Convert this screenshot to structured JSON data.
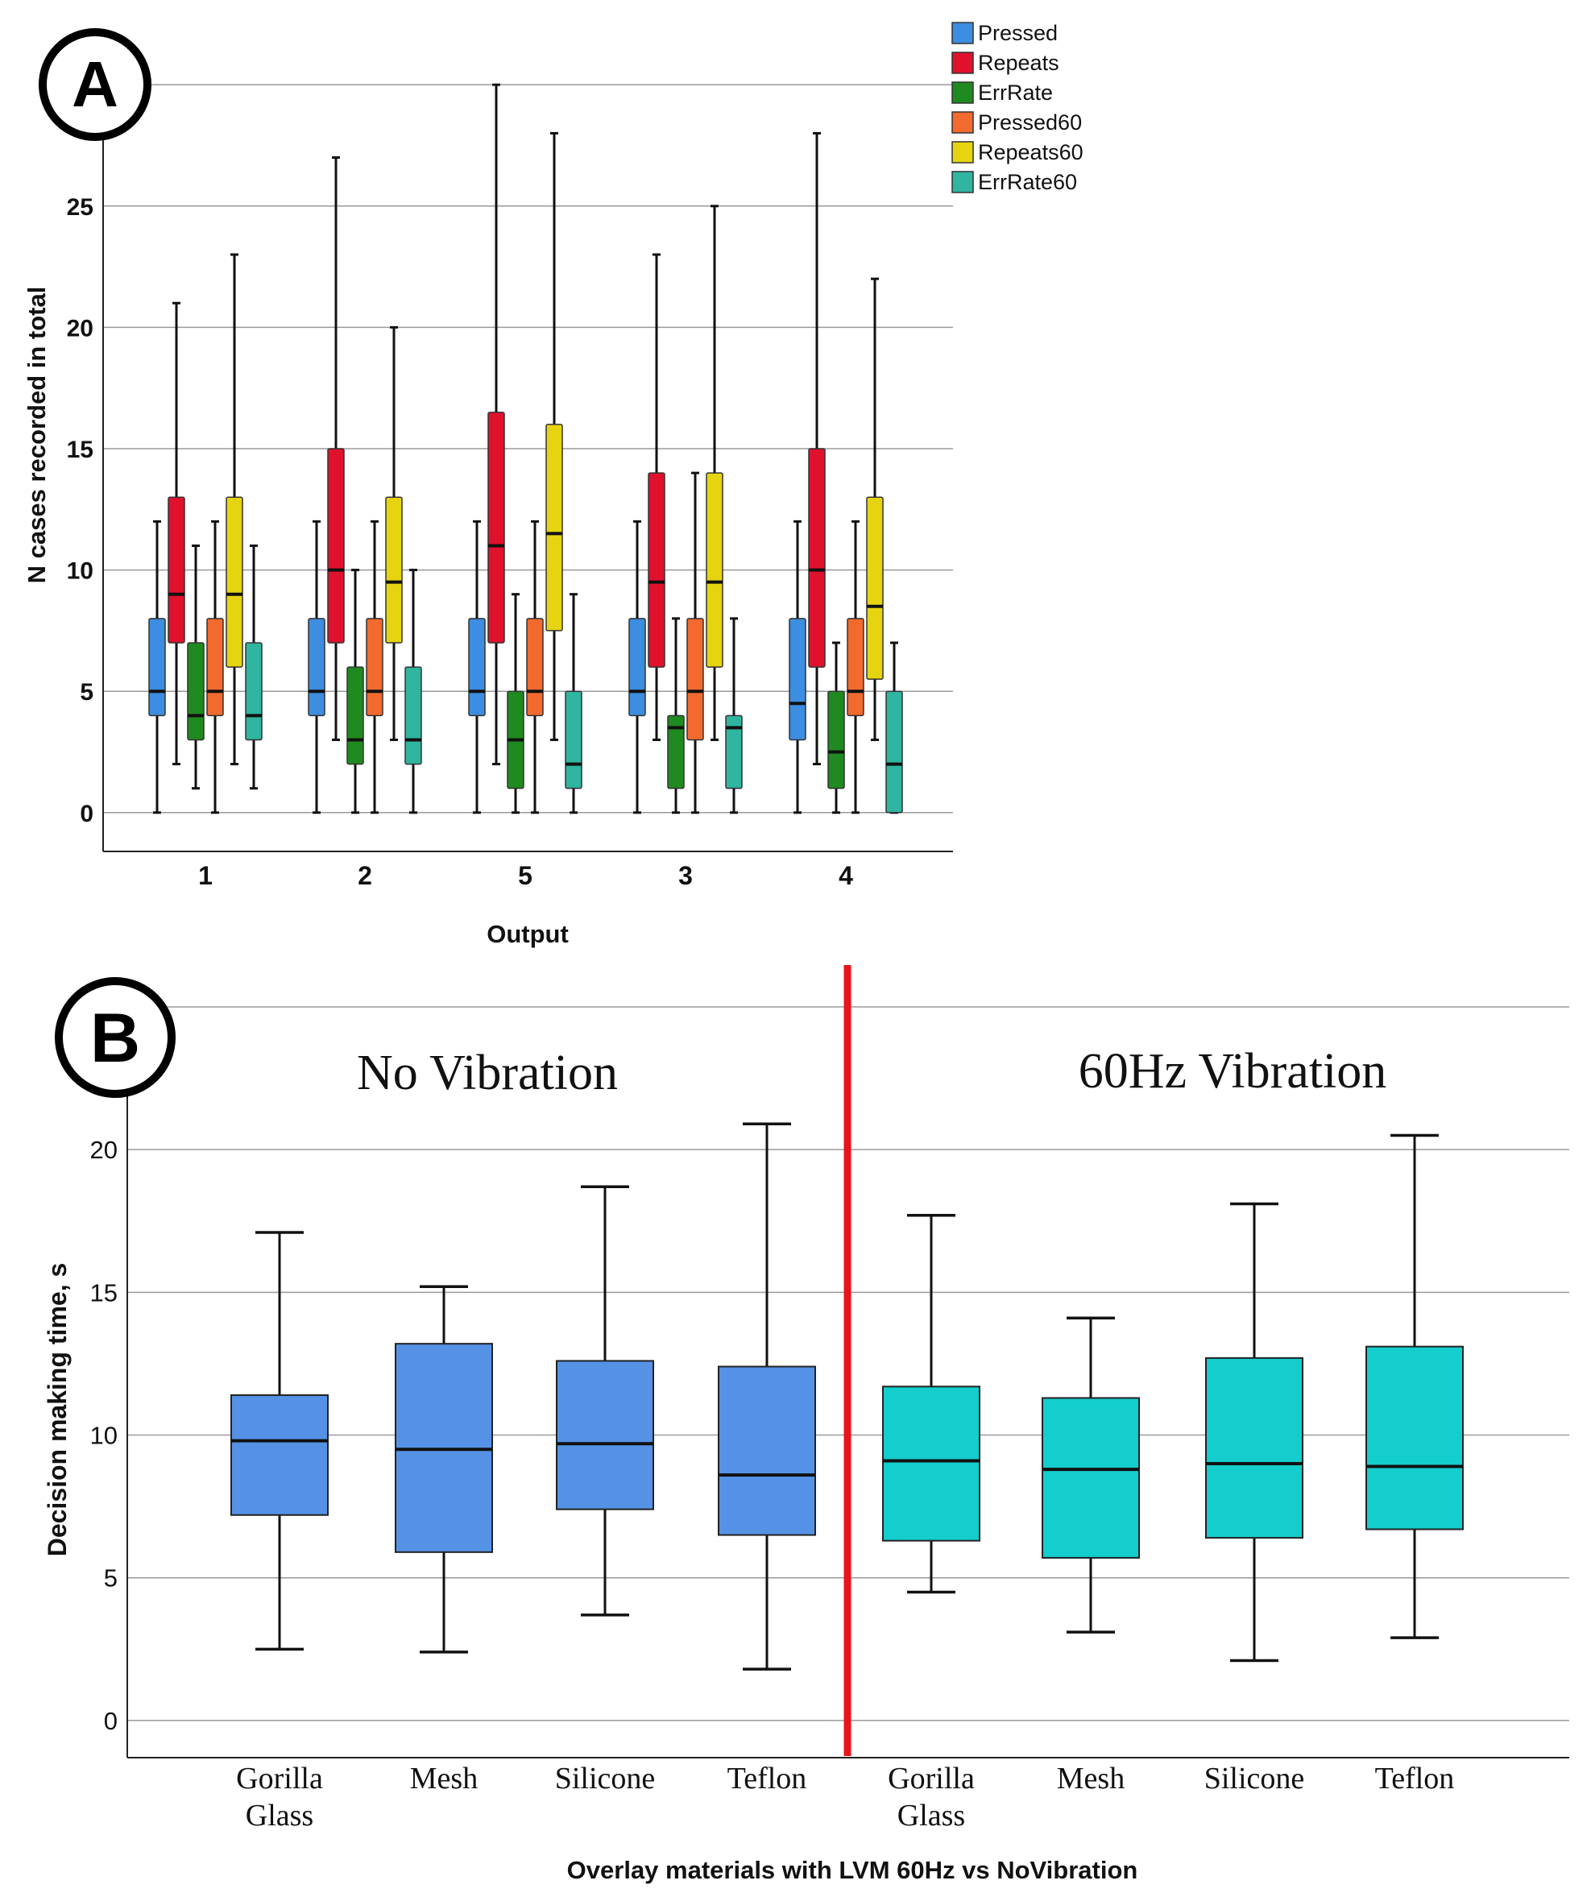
{
  "colors": {
    "pressed": "#3d8de0",
    "repeats": "#e0112d",
    "errrate": "#1f8a1f",
    "pressed60": "#f26a2e",
    "repeats60": "#e6d411",
    "errrate60": "#2fb5a0",
    "no_vibration_box": "#5592e6",
    "vibration_box": "#14cdcd",
    "divider": "#e8141c",
    "grid": "#9a9a9a"
  },
  "chart_data": [
    {
      "id": "A",
      "panel_label": "A",
      "type": "box",
      "title": "",
      "xlabel": "Output",
      "ylabel": "N cases recorded in total",
      "ylim": [
        -1.6,
        31.5
      ],
      "yticks": [
        0,
        5,
        10,
        15,
        20,
        25
      ],
      "grid": true,
      "legend": "top-right",
      "categories": [
        "1",
        "2",
        "5",
        "3",
        "4"
      ],
      "series": [
        {
          "name": "Pressed",
          "color_key": "pressed",
          "stats": [
            {
              "min": 0,
              "q1": 4,
              "median": 5,
              "q3": 8,
              "max": 12
            },
            {
              "min": 0,
              "q1": 4,
              "median": 5,
              "q3": 8,
              "max": 12
            },
            {
              "min": 0,
              "q1": 4,
              "median": 5,
              "q3": 8,
              "max": 12
            },
            {
              "min": 0,
              "q1": 4,
              "median": 5,
              "q3": 8,
              "max": 12
            },
            {
              "min": 0,
              "q1": 3,
              "median": 4.5,
              "q3": 8,
              "max": 12
            }
          ]
        },
        {
          "name": "Repeats",
          "color_key": "repeats",
          "stats": [
            {
              "min": 2,
              "q1": 7,
              "median": 9,
              "q3": 13,
              "max": 21
            },
            {
              "min": 3,
              "q1": 7,
              "median": 10,
              "q3": 15,
              "max": 27
            },
            {
              "min": 2,
              "q1": 7,
              "median": 11,
              "q3": 16.5,
              "max": 30
            },
            {
              "min": 3,
              "q1": 6,
              "median": 9.5,
              "q3": 14,
              "max": 23
            },
            {
              "min": 2,
              "q1": 6,
              "median": 10,
              "q3": 15,
              "max": 28
            }
          ]
        },
        {
          "name": "ErrRate",
          "color_key": "errrate",
          "stats": [
            {
              "min": 1,
              "q1": 3,
              "median": 4,
              "q3": 7,
              "max": 11
            },
            {
              "min": 0,
              "q1": 2,
              "median": 3,
              "q3": 6,
              "max": 10
            },
            {
              "min": 0,
              "q1": 1,
              "median": 3,
              "q3": 5,
              "max": 9
            },
            {
              "min": 0,
              "q1": 1,
              "median": 3.5,
              "q3": 4,
              "max": 8
            },
            {
              "min": 0,
              "q1": 1,
              "median": 2.5,
              "q3": 5,
              "max": 7
            }
          ]
        },
        {
          "name": "Pressed60",
          "color_key": "pressed60",
          "stats": [
            {
              "min": 0,
              "q1": 4,
              "median": 5,
              "q3": 8,
              "max": 12
            },
            {
              "min": 0,
              "q1": 4,
              "median": 5,
              "q3": 8,
              "max": 12
            },
            {
              "min": 0,
              "q1": 4,
              "median": 5,
              "q3": 8,
              "max": 12
            },
            {
              "min": 0,
              "q1": 3,
              "median": 5,
              "q3": 8,
              "max": 14
            },
            {
              "min": 0,
              "q1": 4,
              "median": 5,
              "q3": 8,
              "max": 12
            }
          ]
        },
        {
          "name": "Repeats60",
          "color_key": "repeats60",
          "stats": [
            {
              "min": 2,
              "q1": 6,
              "median": 9,
              "q3": 13,
              "max": 23
            },
            {
              "min": 3,
              "q1": 7,
              "median": 9.5,
              "q3": 13,
              "max": 20
            },
            {
              "min": 3,
              "q1": 7.5,
              "median": 11.5,
              "q3": 16,
              "max": 28
            },
            {
              "min": 3,
              "q1": 6,
              "median": 9.5,
              "q3": 14,
              "max": 25
            },
            {
              "min": 3,
              "q1": 5.5,
              "median": 8.5,
              "q3": 13,
              "max": 22
            }
          ]
        },
        {
          "name": "ErrRate60",
          "color_key": "errrate60",
          "stats": [
            {
              "min": 1,
              "q1": 3,
              "median": 4,
              "q3": 7,
              "max": 11
            },
            {
              "min": 0,
              "q1": 2,
              "median": 3,
              "q3": 6,
              "max": 10
            },
            {
              "min": 0,
              "q1": 1,
              "median": 2,
              "q3": 5,
              "max": 9
            },
            {
              "min": 0,
              "q1": 1,
              "median": 3.5,
              "q3": 4,
              "max": 8
            },
            {
              "min": 0,
              "q1": 0,
              "median": 2,
              "q3": 5,
              "max": 7
            }
          ]
        }
      ]
    },
    {
      "id": "B",
      "panel_label": "B",
      "type": "box",
      "title": "",
      "xlabel": "Overlay materials with LVM 60Hz vs NoVibration",
      "ylabel": "Decision making time, s",
      "ylim": [
        -1.3,
        25.0
      ],
      "yticks": [
        0,
        5,
        10,
        15,
        20
      ],
      "grid": true,
      "group_titles": [
        "No Vibration",
        "60Hz Vibration"
      ],
      "categories": [
        "Gorilla Glass",
        "Mesh",
        "Silicone",
        "Teflon",
        "Gorilla Glass",
        "Mesh",
        "Silicone",
        "Teflon"
      ],
      "groups": [
        {
          "name": "No Vibration",
          "color_key": "no_vibration_box",
          "stats": [
            {
              "min": 2.5,
              "q1": 7.2,
              "median": 9.8,
              "q3": 11.4,
              "max": 17.1
            },
            {
              "min": 2.4,
              "q1": 5.9,
              "median": 9.5,
              "q3": 13.2,
              "max": 15.2
            },
            {
              "min": 3.7,
              "q1": 7.4,
              "median": 9.7,
              "q3": 12.6,
              "max": 18.7
            },
            {
              "min": 1.8,
              "q1": 6.5,
              "median": 8.6,
              "q3": 12.4,
              "max": 20.9
            }
          ]
        },
        {
          "name": "60Hz Vibration",
          "color_key": "vibration_box",
          "stats": [
            {
              "min": 4.5,
              "q1": 6.3,
              "median": 9.1,
              "q3": 11.7,
              "max": 17.7
            },
            {
              "min": 3.1,
              "q1": 5.7,
              "median": 8.8,
              "q3": 11.3,
              "max": 14.1
            },
            {
              "min": 2.1,
              "q1": 6.4,
              "median": 9.0,
              "q3": 12.7,
              "max": 18.1
            },
            {
              "min": 2.9,
              "q1": 6.7,
              "median": 8.9,
              "q3": 13.1,
              "max": 20.5
            }
          ]
        }
      ]
    }
  ]
}
